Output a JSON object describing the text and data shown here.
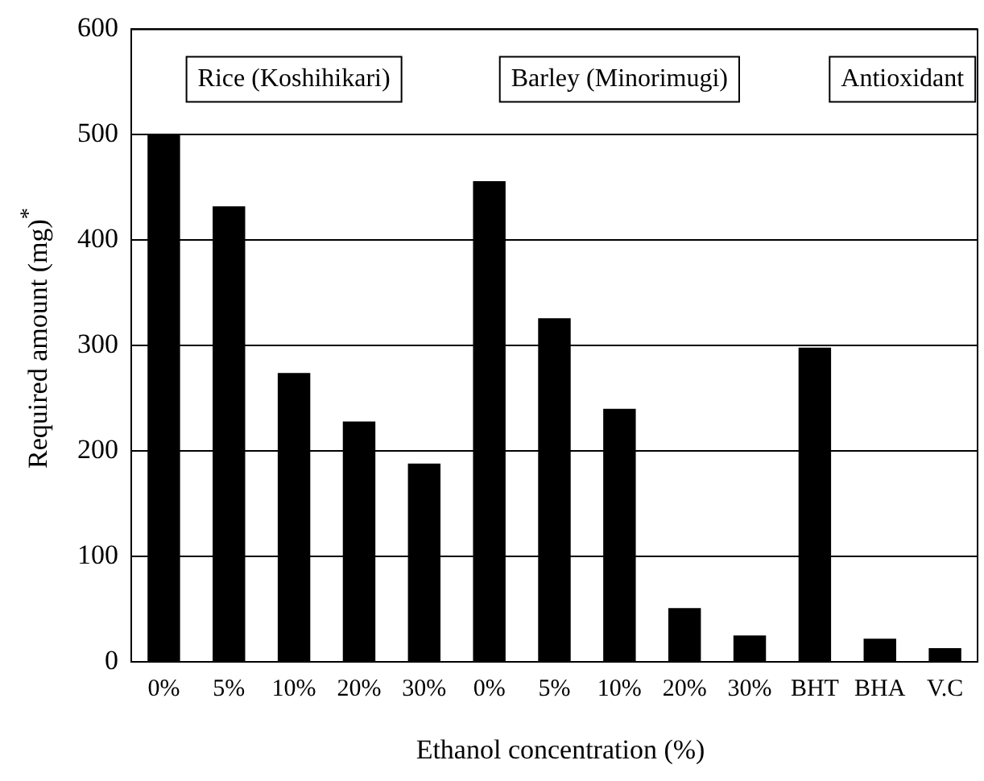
{
  "chart_data": {
    "type": "bar",
    "xlabel": "Ethanol concentration (%)",
    "ylabel": "Required amount (mg)$^{*}$",
    "categories": [
      "0%",
      "5%",
      "10%",
      "20%",
      "30%",
      "0%",
      "5%",
      "10%",
      "20%",
      "30%",
      "BHT",
      "BHA",
      "V.C"
    ],
    "values": [
      500,
      432,
      274,
      228,
      188,
      456,
      326,
      240,
      51,
      25,
      298,
      22,
      13
    ],
    "color": "#000000",
    "ylim": [
      0,
      600
    ],
    "yticks": [
      0,
      100,
      200,
      300,
      400,
      500,
      600
    ],
    "grid": "y",
    "legend": false,
    "annotations": [
      "Rice (Koshihikari)",
      "Barley (Minorimugi)",
      "Antioxidant"
    ]
  }
}
